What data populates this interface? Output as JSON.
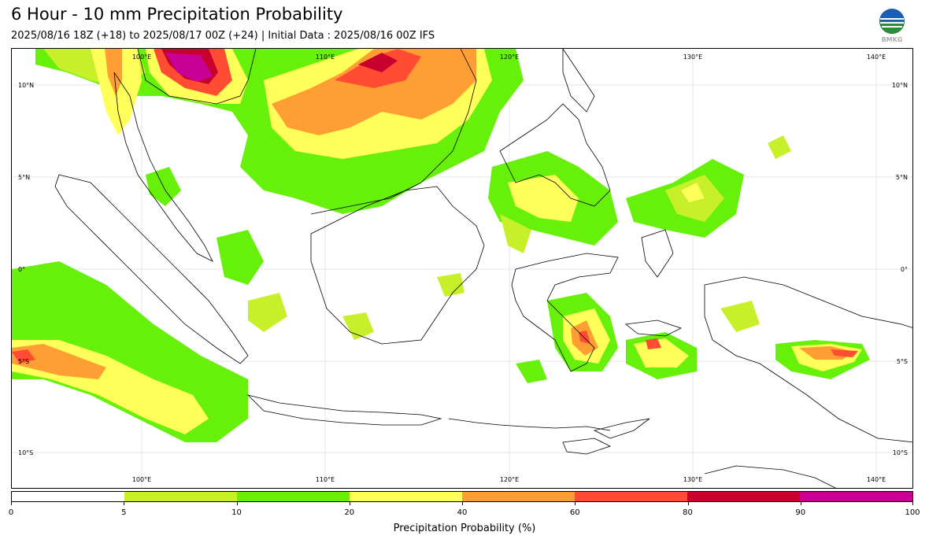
{
  "title": "6 Hour - 10 mm Precipitation Probability",
  "subtitle": "2025/08/16 18Z (+18) to 2025/08/17 00Z (+24) | Initial Data : 2025/08/16 00Z IFS",
  "logo_text": "BMKG",
  "map": {
    "lon_labels_top": [
      "100°E",
      "110°E",
      "120°E",
      "130°E",
      "140°E"
    ],
    "lon_labels_bottom": [
      "100°E",
      "110°E",
      "120°E",
      "130°E",
      "140°E"
    ],
    "lat_labels_left": [
      "10°N",
      "5°N",
      "0°",
      "5°S",
      "10°S"
    ],
    "lat_labels_right": [
      "10°N",
      "5°N",
      "0°",
      "5°S",
      "10°S"
    ]
  },
  "colorbar": {
    "label": "Precipitation Probability (%)",
    "ticks": [
      "0",
      "5",
      "10",
      "20",
      "40",
      "60",
      "80",
      "90",
      "100"
    ],
    "colors": [
      "#ffffff",
      "#c8f02a",
      "#66f00a",
      "#ffff5a",
      "#ff9e32",
      "#ff4c32",
      "#c8002d",
      "#c80096"
    ]
  }
}
